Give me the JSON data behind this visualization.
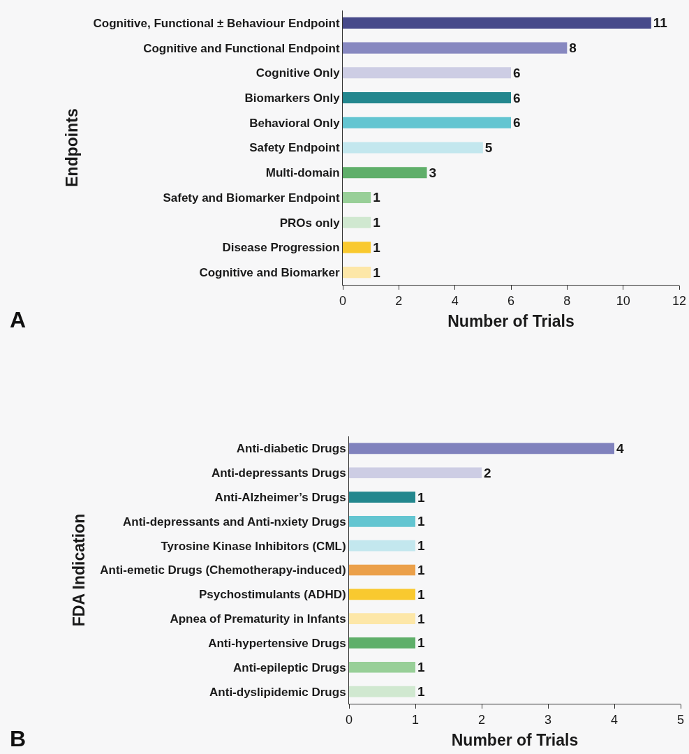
{
  "chart_data": [
    {
      "type": "bar",
      "orientation": "horizontal",
      "xlabel": "Number of Trials",
      "ylabel": "Endpoints",
      "annotations": [
        "A"
      ],
      "categories": [
        "Cognitive, Functional ± Behaviour Endpoint",
        "Cognitive and Functional Endpoint",
        "Cognitive Only",
        "Biomarkers Only",
        "Behavioral Only",
        "Safety Endpoint",
        "Multi-domain",
        "Safety and Biomarker Endpoint",
        "PROs only",
        "Disease Progression",
        "Cognitive and Biomarker"
      ],
      "values": [
        11,
        8,
        6,
        6,
        6,
        5,
        3,
        1,
        1,
        1,
        1
      ],
      "colors": [
        "#474a8a",
        "#8788c0",
        "#cdcde4",
        "#23878e",
        "#63c5d1",
        "#c3e7ee",
        "#5faf6a",
        "#98cf98",
        "#d0e8d0",
        "#f9c92f",
        "#fde7a8"
      ],
      "xlim": [
        0,
        12
      ],
      "xticks": [
        0,
        2,
        4,
        6,
        8,
        10,
        12
      ],
      "data_labels": true
    },
    {
      "type": "bar",
      "orientation": "horizontal",
      "xlabel": "Number of Trials",
      "ylabel": "FDA Indication",
      "annotations": [
        "B"
      ],
      "categories": [
        "Anti-diabetic Drugs",
        "Anti-depressants Drugs",
        "Anti-Alzheimer’s Drugs",
        "Anti-depressants and Anti-nxiety Drugs",
        "Tyrosine Kinase Inhibitors (CML)",
        "Anti-emetic Drugs (Chemotherapy-induced)",
        "Psychostimulants (ADHD)",
        "Apnea of Prematurity in Infants",
        "Anti-hypertensive Drugs",
        "Anti-epileptic Drugs",
        "Anti-dyslipidemic Drugs"
      ],
      "values": [
        4,
        2,
        1,
        1,
        1,
        1,
        1,
        1,
        1,
        1,
        1
      ],
      "colors": [
        "#8082bd",
        "#cdcde4",
        "#23878e",
        "#63c5d1",
        "#c3e7ee",
        "#eba04a",
        "#f9c92f",
        "#fde7a8",
        "#5faf6a",
        "#98cf98",
        "#d0e8d0"
      ],
      "xlim": [
        0,
        5
      ],
      "xticks": [
        0,
        1,
        2,
        3,
        4,
        5
      ],
      "data_labels": true
    }
  ]
}
